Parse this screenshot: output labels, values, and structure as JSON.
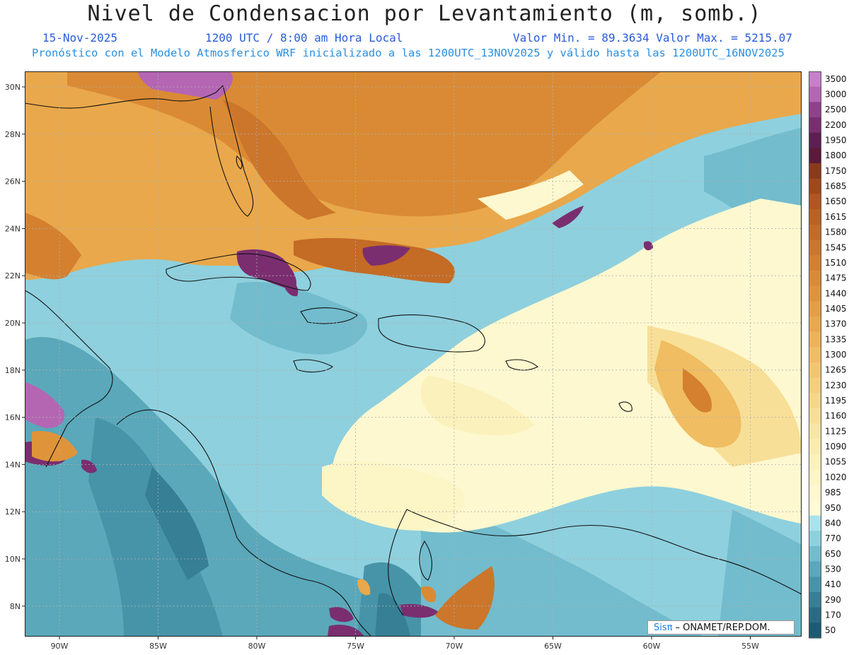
{
  "header": {
    "title": "Nivel de Condensacion por Levantamiento (m, somb.)",
    "date": "15-Nov-2025",
    "time": "1200 UTC / 8:00 am Hora Local",
    "min_max": "Valor Min. = 89.3634  Valor Max. = 5215.07",
    "forecast_info": "Pronóstico con el Modelo Atmosferico WRF inicializado a las 1200UTC_13NOV2025 y válido hasta las  1200UTC_16NOV2025"
  },
  "axes": {
    "lat_labels": [
      "30N",
      "28N",
      "26N",
      "24N",
      "22N",
      "20N",
      "18N",
      "16N",
      "14N",
      "12N",
      "10N",
      "8N"
    ],
    "lat_values": [
      30,
      28,
      26,
      24,
      22,
      20,
      18,
      16,
      14,
      12,
      10,
      8
    ],
    "lon_labels": [
      "90W",
      "85W",
      "80W",
      "75W",
      "70W",
      "65W",
      "60W",
      "55W"
    ],
    "lon_values": [
      -90,
      -85,
      -80,
      -75,
      -70,
      -65,
      -60,
      -55
    ]
  },
  "colorbar": {
    "labels": [
      "3500",
      "3000",
      "2500",
      "2200",
      "1950",
      "1800",
      "1750",
      "1685",
      "1650",
      "1615",
      "1580",
      "1545",
      "1510",
      "1475",
      "1440",
      "1405",
      "1370",
      "1335",
      "1300",
      "1265",
      "1230",
      "1195",
      "1160",
      "1125",
      "1090",
      "1055",
      "1020",
      "985",
      "950",
      "840",
      "770",
      "650",
      "530",
      "410",
      "290",
      "170",
      "50"
    ],
    "colors": [
      "#c67fc8",
      "#b466b3",
      "#8f4189",
      "#7a2e70",
      "#5c1f52",
      "#5a1a3a",
      "#8a3a1a",
      "#a04818",
      "#b25520",
      "#bb6122",
      "#c46b26",
      "#cc762b",
      "#d4802f",
      "#da8a34",
      "#e0943a",
      "#e59e42",
      "#e9a84b",
      "#edb356",
      "#f0bd62",
      "#f2c66f",
      "#f4cf7c",
      "#f6d789",
      "#f8df97",
      "#f9e6a4",
      "#faecb0",
      "#fbf1bc",
      "#fcf5c6",
      "#fdf8cf",
      "#fffbd6",
      "#a9e2ec",
      "#8ed0de",
      "#72bccd",
      "#5aa8ba",
      "#4794a8",
      "#367f95",
      "#286c84",
      "#1b5c74"
    ]
  },
  "credit": {
    "brand": "Sisπ",
    "org": "– ONAMET/REP.DOM."
  }
}
